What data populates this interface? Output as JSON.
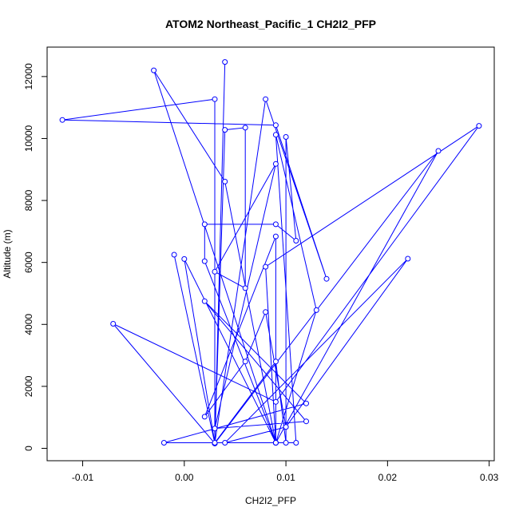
{
  "chart_data": {
    "type": "line",
    "title": "ATOM2 Northeast_Pacific_1 CH2I2_PFP",
    "xlabel": "CH2I2_PFP",
    "ylabel": "Altitude (m)",
    "xlim": [
      -0.0135,
      0.0305
    ],
    "ylim": [
      -400,
      12950
    ],
    "x_ticks": [
      -0.01,
      0.0,
      0.01,
      0.02,
      0.03
    ],
    "x_tick_labels": [
      "-0.01",
      "0.00",
      "0.01",
      "0.02",
      "0.03"
    ],
    "y_ticks": [
      0,
      2000,
      4000,
      6000,
      8000,
      10000,
      12000
    ],
    "y_tick_labels": [
      "0",
      "2000",
      "4000",
      "6000",
      "8000",
      "10000",
      "12000"
    ],
    "grid": false,
    "legend": "none",
    "colors": {
      "series": "#0000ff",
      "axis": "#000000",
      "background": "#ffffff"
    },
    "series": [
      {
        "points": [
          [
            0.004,
            12470
          ],
          [
            0.003,
            160
          ],
          [
            0.003,
            11270
          ],
          [
            -0.012,
            10600
          ],
          [
            0.009,
            10430
          ],
          [
            0.014,
            5470
          ],
          [
            0.008,
            11270
          ],
          [
            0.003,
            160
          ],
          [
            -0.001,
            6250
          ],
          [
            0.003,
            160
          ],
          [
            0.004,
            10280
          ],
          [
            0.006,
            10350
          ],
          [
            0.006,
            5170
          ],
          [
            0.003,
            5700
          ],
          [
            0.009,
            9180
          ],
          [
            0.003,
            640
          ],
          [
            0.012,
            870
          ],
          [
            0.002,
            4750
          ],
          [
            0.012,
            1450
          ],
          [
            -0.002,
            180
          ],
          [
            0.011,
            180
          ],
          [
            0.009,
            10120
          ],
          [
            0.013,
            4460
          ],
          [
            0.009,
            180
          ],
          [
            0.008,
            5860
          ],
          [
            0.029,
            10410
          ],
          [
            0.009,
            1500
          ],
          [
            -0.007,
            4020
          ],
          [
            0.003,
            160
          ],
          [
            0.025,
            9600
          ],
          [
            0.009,
            180
          ],
          [
            0.004,
            8610
          ],
          [
            -0.003,
            12200
          ],
          [
            0.009,
            180
          ],
          [
            0.0,
            6110
          ],
          [
            0.003,
            180
          ],
          [
            0.009,
            2800
          ],
          [
            0.01,
            180
          ],
          [
            0.01,
            10050
          ],
          [
            0.011,
            6700
          ],
          [
            0.009,
            7230
          ],
          [
            0.002,
            7230
          ],
          [
            0.002,
            6040
          ],
          [
            0.009,
            180
          ],
          [
            0.009,
            6840
          ],
          [
            0.002,
            1020
          ],
          [
            0.006,
            2800
          ],
          [
            0.008,
            4400
          ],
          [
            0.01,
            690
          ],
          [
            0.004,
            180
          ],
          [
            0.022,
            6120
          ],
          [
            0.01,
            690
          ]
        ]
      }
    ]
  }
}
